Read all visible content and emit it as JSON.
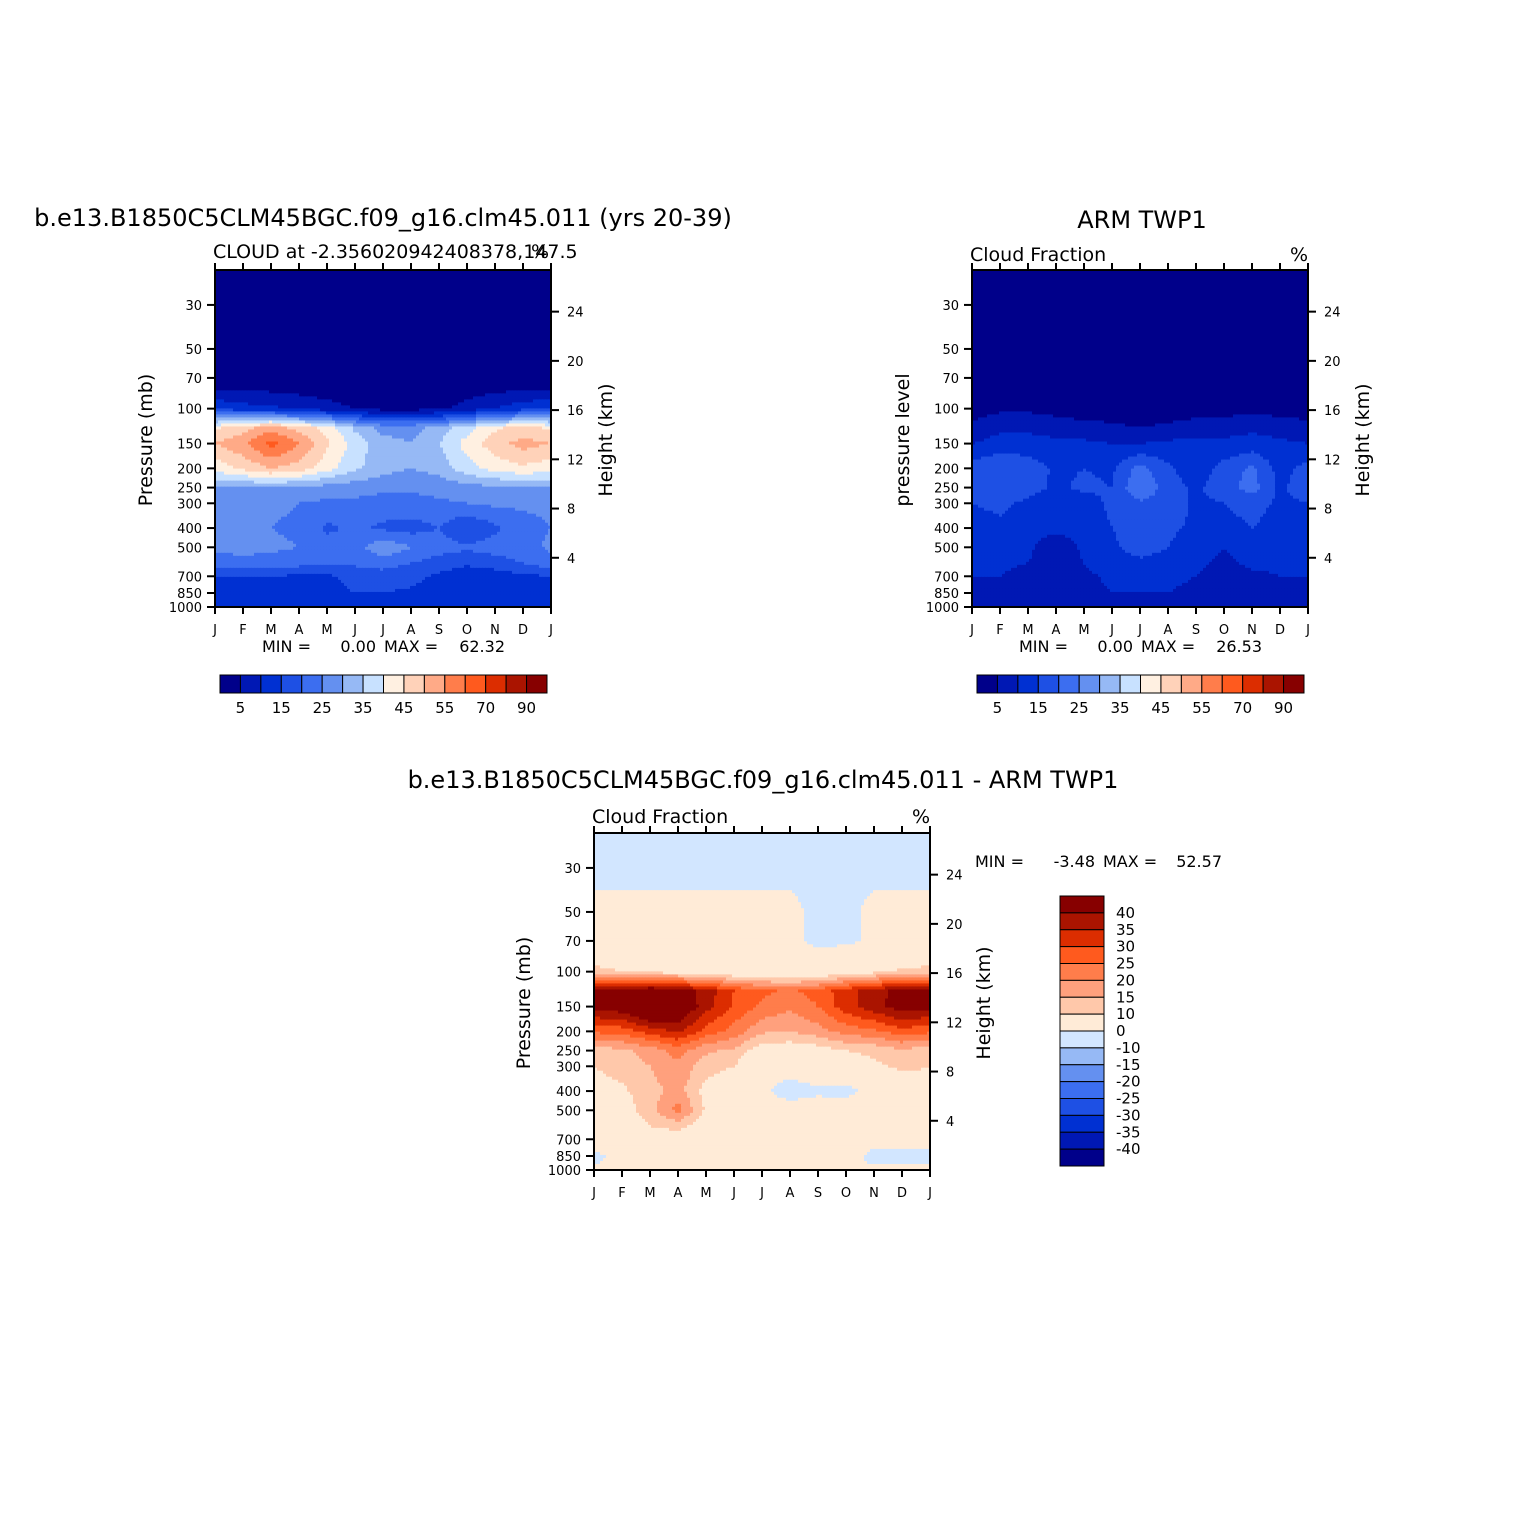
{
  "chart_data": [
    {
      "type": "heatmap",
      "id": "model",
      "title": "b.e13.B1850C5CLM45BGC.f09_g16.clm45.011 (yrs 20-39)",
      "subtitle_left": "CLOUD at -2.356020942408378,147.5",
      "units": "%",
      "ylabel_left": "Pressure (mb)",
      "ylabel_right": "Height (km)",
      "months": [
        "J",
        "F",
        "M",
        "A",
        "M",
        "J",
        "J",
        "A",
        "S",
        "O",
        "N",
        "D",
        "J"
      ],
      "pressure_ticks": [
        "30",
        "50",
        "70",
        "100",
        "150",
        "200",
        "250",
        "300",
        "400",
        "500",
        "700",
        "850",
        "1000"
      ],
      "height_ticks": [
        "24",
        "20",
        "16",
        "12",
        "8",
        "4"
      ],
      "min_label": "MIN =",
      "min_value": "0.00",
      "max_label": "MAX =",
      "max_value": "62.32",
      "grid_levels": [
        30,
        50,
        70,
        100,
        125,
        150,
        200,
        250,
        300,
        400,
        500,
        600,
        700,
        850,
        1000
      ],
      "grid_values": [
        [
          0,
          0,
          0,
          0,
          0,
          0,
          0,
          0,
          0,
          0,
          0,
          0,
          0
        ],
        [
          0,
          0,
          0,
          0,
          0,
          0,
          0,
          0,
          0,
          0,
          0,
          0,
          0
        ],
        [
          0,
          0,
          0,
          0,
          0,
          0,
          0,
          0,
          0,
          0,
          0,
          0,
          0
        ],
        [
          14,
          12,
          11,
          9,
          7,
          5,
          3,
          3,
          4,
          7,
          10,
          13,
          14
        ],
        [
          44,
          48,
          53,
          48,
          43,
          34,
          28,
          28,
          32,
          38,
          44,
          47,
          44
        ],
        [
          50,
          54,
          62,
          55,
          46,
          38,
          32,
          30,
          35,
          42,
          48,
          52,
          50
        ],
        [
          42,
          46,
          50,
          48,
          42,
          36,
          32,
          30,
          32,
          38,
          42,
          44,
          42
        ],
        [
          30,
          30,
          30,
          29,
          28,
          27,
          26,
          26,
          27,
          28,
          29,
          30,
          30
        ],
        [
          26,
          26,
          26,
          25,
          24,
          24,
          23,
          23,
          24,
          25,
          26,
          26,
          26
        ],
        [
          25,
          25,
          25,
          24,
          19,
          21,
          19,
          18,
          20,
          15,
          19,
          23,
          25
        ],
        [
          26,
          27,
          26,
          25,
          22,
          23,
          29,
          25,
          22,
          21,
          22,
          23,
          26
        ],
        [
          23,
          23,
          23,
          22,
          21,
          21,
          22,
          20,
          18,
          16,
          18,
          20,
          23
        ],
        [
          15,
          15,
          15,
          14,
          14,
          17,
          18,
          17,
          14,
          11,
          12,
          14,
          15
        ],
        [
          14,
          14,
          14,
          13,
          13,
          15,
          15,
          14,
          11,
          10,
          11,
          12,
          14
        ],
        [
          14,
          14,
          14,
          14,
          14,
          14,
          14,
          14,
          14,
          14,
          14,
          14,
          14
        ]
      ]
    },
    {
      "type": "heatmap",
      "id": "obs",
      "title": "ARM TWP1",
      "subtitle_left": "Cloud Fraction",
      "units": "%",
      "ylabel_left": "pressure level",
      "ylabel_right": "Height (km)",
      "months": [
        "J",
        "F",
        "M",
        "A",
        "M",
        "J",
        "J",
        "A",
        "S",
        "O",
        "N",
        "D",
        "J"
      ],
      "pressure_ticks": [
        "30",
        "50",
        "70",
        "100",
        "150",
        "200",
        "250",
        "300",
        "400",
        "500",
        "700",
        "850",
        "1000"
      ],
      "height_ticks": [
        "24",
        "20",
        "16",
        "12",
        "8",
        "4"
      ],
      "min_label": "MIN =",
      "min_value": "0.00",
      "max_label": "MAX =",
      "max_value": "26.53",
      "grid_levels": [
        30,
        50,
        70,
        100,
        125,
        150,
        200,
        250,
        300,
        400,
        500,
        600,
        700,
        850,
        1000
      ],
      "grid_values": [
        [
          0,
          0,
          0,
          0,
          0,
          0,
          0,
          0,
          0,
          0,
          0,
          0,
          0
        ],
        [
          0,
          0,
          0,
          0,
          0,
          0,
          0,
          0,
          0,
          0,
          0,
          0,
          0
        ],
        [
          0,
          0,
          0,
          0,
          0,
          0,
          0,
          0,
          0,
          0,
          0,
          0,
          0
        ],
        [
          3,
          4,
          4,
          3,
          2,
          2,
          2,
          2,
          3,
          3,
          3,
          3,
          3
        ],
        [
          6,
          9,
          9,
          8,
          7,
          6,
          5,
          6,
          7,
          8,
          9,
          8,
          6
        ],
        [
          10,
          12,
          12,
          11,
          11,
          10,
          10,
          11,
          12,
          11,
          12,
          11,
          10
        ],
        [
          17,
          20,
          18,
          14,
          15,
          14,
          22,
          16,
          12,
          17,
          21,
          13,
          17
        ],
        [
          18,
          19,
          17,
          14,
          16,
          15,
          25,
          17,
          14,
          18,
          22,
          14,
          18
        ],
        [
          15,
          16,
          14,
          12,
          13,
          16,
          19,
          18,
          14,
          15,
          17,
          14,
          15
        ],
        [
          13,
          14,
          12,
          11,
          12,
          15,
          18,
          16,
          14,
          13,
          15,
          13,
          13
        ],
        [
          12,
          12,
          11,
          7,
          11,
          14,
          17,
          15,
          12,
          10,
          12,
          12,
          12
        ],
        [
          11,
          11,
          10,
          6,
          10,
          13,
          14,
          13,
          11,
          9,
          11,
          11,
          11
        ],
        [
          10,
          10,
          8,
          5,
          9,
          11,
          12,
          11,
          10,
          8,
          9,
          10,
          10
        ],
        [
          9,
          9,
          7,
          5,
          8,
          10,
          10,
          10,
          9,
          8,
          9,
          9,
          9
        ],
        [
          8,
          8,
          8,
          8,
          8,
          8,
          8,
          8,
          8,
          8,
          8,
          8,
          8
        ]
      ]
    },
    {
      "type": "heatmap",
      "id": "diff",
      "title": "b.e13.B1850C5CLM45BGC.f09_g16.clm45.011 - ARM TWP1",
      "subtitle_left": "Cloud Fraction",
      "units": "%",
      "ylabel_left": "Pressure (mb)",
      "ylabel_right": "Height (km)",
      "months": [
        "J",
        "F",
        "M",
        "A",
        "M",
        "J",
        "J",
        "A",
        "S",
        "O",
        "N",
        "D",
        "J"
      ],
      "pressure_ticks": [
        "30",
        "50",
        "70",
        "100",
        "150",
        "200",
        "250",
        "300",
        "400",
        "500",
        "700",
        "850",
        "1000"
      ],
      "height_ticks": [
        "24",
        "20",
        "16",
        "12",
        "8",
        "4"
      ],
      "min_label": "MIN =",
      "min_value": "-3.48",
      "max_label": "MAX =",
      "max_value": "52.57",
      "grid_levels": [
        30,
        50,
        70,
        100,
        125,
        150,
        200,
        250,
        300,
        400,
        500,
        600,
        700,
        850,
        1000
      ],
      "grid_values": [
        [
          -1,
          -1,
          -1,
          -1,
          -1,
          -1,
          -1,
          -1,
          -1,
          -1,
          -1,
          -1,
          -1
        ],
        [
          1,
          1,
          1,
          1,
          1,
          1,
          1,
          1,
          -1,
          -1,
          1,
          1,
          1
        ],
        [
          1,
          1,
          1,
          1,
          1,
          1,
          1,
          1,
          -1,
          -1,
          1,
          1,
          1
        ],
        [
          12,
          10,
          8,
          7,
          5,
          4,
          3,
          3,
          4,
          6,
          8,
          11,
          12
        ],
        [
          40,
          42,
          46,
          43,
          38,
          30,
          26,
          24,
          27,
          33,
          38,
          42,
          40
        ],
        [
          42,
          44,
          52,
          47,
          37,
          29,
          24,
          21,
          25,
          33,
          38,
          43,
          42
        ],
        [
          26,
          27,
          32,
          36,
          28,
          23,
          16,
          15,
          18,
          22,
          24,
          28,
          26
        ],
        [
          12,
          14,
          17,
          22,
          16,
          14,
          6,
          6,
          7,
          10,
          11,
          14,
          12
        ],
        [
          10,
          12,
          15,
          19,
          12,
          10,
          2,
          2,
          4,
          7,
          9,
          11,
          10
        ],
        [
          8,
          9,
          13,
          17,
          8,
          6,
          1,
          -2,
          -1,
          -2,
          2,
          6,
          8
        ],
        [
          6,
          7,
          13,
          22,
          9,
          5,
          2,
          2,
          3,
          4,
          4,
          6,
          6
        ],
        [
          5,
          6,
          10,
          12,
          6,
          4,
          3,
          3,
          3,
          3,
          3,
          4,
          5
        ],
        [
          4,
          4,
          5,
          6,
          5,
          4,
          3,
          3,
          3,
          3,
          3,
          4,
          4
        ],
        [
          -2,
          3,
          3,
          3,
          3,
          3,
          3,
          3,
          3,
          3,
          -2,
          -2,
          -2
        ],
        [
          1,
          1,
          1,
          1,
          1,
          1,
          1,
          1,
          1,
          1,
          1,
          1,
          1
        ]
      ]
    }
  ],
  "colorbars": {
    "model": {
      "labels": [
        "5",
        "15",
        "25",
        "35",
        "45",
        "55",
        "70",
        "90"
      ],
      "levels": [
        5,
        10,
        15,
        20,
        25,
        30,
        35,
        40,
        45,
        50,
        55,
        60,
        70,
        80,
        90
      ],
      "colors": [
        "#00008a",
        "#0018b4",
        "#0030d2",
        "#1e50e4",
        "#3c6ef0",
        "#6490f0",
        "#96b9f5",
        "#c8e1ff",
        "#fff0e1",
        "#ffd2b9",
        "#ffaa87",
        "#ff7d4b",
        "#ff5a1e",
        "#dc2d00",
        "#aa1400",
        "#870000"
      ]
    },
    "obs": {
      "labels": [
        "5",
        "15",
        "25",
        "35",
        "45",
        "55",
        "70",
        "90"
      ],
      "levels": [
        5,
        10,
        15,
        20,
        25,
        30,
        35,
        40,
        45,
        50,
        55,
        60,
        70,
        80,
        90
      ],
      "colors": [
        "#00008a",
        "#0018b4",
        "#0030d2",
        "#1e50e4",
        "#3c6ef0",
        "#6490f0",
        "#96b9f5",
        "#c8e1ff",
        "#fff0e1",
        "#ffd2b9",
        "#ffaa87",
        "#ff7d4b",
        "#ff5a1e",
        "#dc2d00",
        "#aa1400",
        "#870000"
      ]
    },
    "diff": {
      "labels": [
        "40",
        "35",
        "30",
        "25",
        "20",
        "15",
        "10",
        "0",
        "-10",
        "-15",
        "-20",
        "-25",
        "-30",
        "-35",
        "-40"
      ],
      "levels": [
        -40,
        -35,
        -30,
        -25,
        -20,
        -15,
        -10,
        0,
        10,
        15,
        20,
        25,
        30,
        35,
        40
      ],
      "colors": [
        "#00008a",
        "#0018b4",
        "#0030d2",
        "#1e50e4",
        "#3c6ef0",
        "#6490f0",
        "#96b9f5",
        "#d2e6ff",
        "#ffebd7",
        "#ffc8aa",
        "#ffa07d",
        "#ff7d4b",
        "#ff5a1e",
        "#dc2d00",
        "#aa1400",
        "#870000"
      ]
    }
  }
}
